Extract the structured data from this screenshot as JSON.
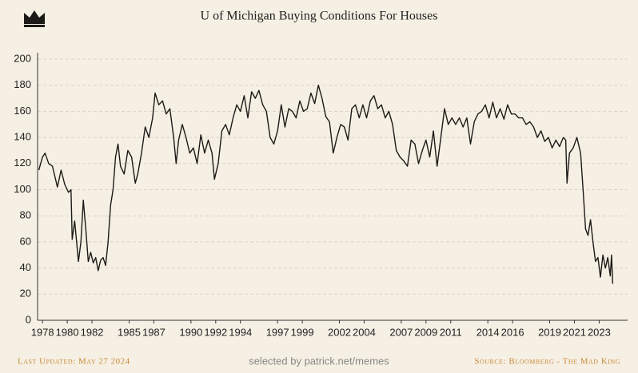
{
  "chart_data": {
    "type": "line",
    "title": "U of Michigan Buying Conditions For Houses",
    "xlim": [
      1977.6,
      2025.3
    ],
    "ylim": [
      0,
      200
    ],
    "yticks": [
      0,
      20,
      40,
      60,
      80,
      100,
      120,
      140,
      160,
      180,
      200
    ],
    "xticks": [
      1978,
      1980,
      1982,
      1985,
      1987,
      1990,
      1992,
      1994,
      1997,
      1999,
      2002,
      2004,
      2007,
      2009,
      2011,
      2014,
      2016,
      2019,
      2021,
      2023
    ],
    "grid": true,
    "color": "#1c1a17",
    "x": [
      1977.7,
      1978.0,
      1978.2,
      1978.5,
      1978.8,
      1979.0,
      1979.2,
      1979.5,
      1979.8,
      1980.1,
      1980.3,
      1980.4,
      1980.6,
      1980.9,
      1981.1,
      1981.3,
      1981.5,
      1981.7,
      1981.9,
      1982.1,
      1982.3,
      1982.5,
      1982.7,
      1982.9,
      1983.1,
      1983.3,
      1983.5,
      1983.7,
      1983.9,
      1984.1,
      1984.3,
      1984.6,
      1984.9,
      1985.2,
      1985.5,
      1985.7,
      1986.0,
      1986.3,
      1986.6,
      1986.9,
      1987.1,
      1987.4,
      1987.7,
      1988.0,
      1988.3,
      1988.6,
      1988.8,
      1989.0,
      1989.3,
      1989.6,
      1989.9,
      1990.2,
      1990.5,
      1990.8,
      1991.1,
      1991.4,
      1991.7,
      1991.9,
      1992.2,
      1992.5,
      1992.8,
      1993.1,
      1993.4,
      1993.7,
      1994.0,
      1994.3,
      1994.6,
      1994.9,
      1995.2,
      1995.5,
      1995.8,
      1996.1,
      1996.4,
      1996.7,
      1997.0,
      1997.3,
      1997.6,
      1997.9,
      1998.2,
      1998.5,
      1998.8,
      1999.1,
      1999.4,
      1999.7,
      2000.0,
      2000.3,
      2000.6,
      2000.9,
      2001.2,
      2001.5,
      2001.8,
      2002.1,
      2002.4,
      2002.7,
      2003.0,
      2003.3,
      2003.6,
      2003.9,
      2004.2,
      2004.5,
      2004.8,
      2005.1,
      2005.4,
      2005.7,
      2006.0,
      2006.3,
      2006.6,
      2006.9,
      2007.2,
      2007.5,
      2007.8,
      2008.1,
      2008.4,
      2008.7,
      2009.0,
      2009.3,
      2009.6,
      2009.9,
      2010.2,
      2010.5,
      2010.8,
      2011.1,
      2011.4,
      2011.7,
      2012.0,
      2012.3,
      2012.6,
      2012.9,
      2013.2,
      2013.5,
      2013.8,
      2014.1,
      2014.4,
      2014.7,
      2015.0,
      2015.3,
      2015.6,
      2015.9,
      2016.2,
      2016.5,
      2016.8,
      2017.1,
      2017.4,
      2017.7,
      2018.0,
      2018.3,
      2018.6,
      2018.9,
      2019.2,
      2019.5,
      2019.8,
      2020.1,
      2020.3,
      2020.4,
      2020.6,
      2020.9,
      2021.2,
      2021.5,
      2021.7,
      2021.9,
      2022.1,
      2022.3,
      2022.5,
      2022.7,
      2022.9,
      2023.1,
      2023.3,
      2023.5,
      2023.7,
      2023.9,
      2024.0,
      2024.1
    ],
    "values": [
      115,
      125,
      128,
      120,
      118,
      110,
      102,
      115,
      104,
      98,
      100,
      62,
      76,
      45,
      60,
      92,
      70,
      45,
      52,
      44,
      48,
      38,
      46,
      48,
      42,
      60,
      88,
      100,
      125,
      135,
      118,
      112,
      130,
      125,
      105,
      112,
      128,
      148,
      140,
      155,
      174,
      165,
      168,
      158,
      162,
      140,
      120,
      138,
      150,
      140,
      128,
      132,
      120,
      142,
      128,
      138,
      128,
      108,
      120,
      145,
      150,
      142,
      155,
      165,
      160,
      172,
      155,
      175,
      170,
      176,
      165,
      160,
      140,
      135,
      145,
      165,
      148,
      162,
      160,
      155,
      168,
      160,
      162,
      174,
      166,
      180,
      170,
      156,
      152,
      128,
      140,
      150,
      148,
      138,
      162,
      165,
      155,
      165,
      155,
      168,
      172,
      162,
      165,
      155,
      160,
      150,
      130,
      125,
      122,
      118,
      138,
      135,
      120,
      130,
      138,
      125,
      145,
      118,
      140,
      162,
      150,
      155,
      150,
      155,
      148,
      155,
      135,
      152,
      158,
      160,
      165,
      155,
      167,
      155,
      162,
      154,
      165,
      158,
      158,
      155,
      155,
      150,
      152,
      148,
      140,
      145,
      137,
      140,
      132,
      138,
      133,
      140,
      138,
      105,
      128,
      132,
      140,
      128,
      100,
      70,
      65,
      77,
      60,
      45,
      48,
      33,
      50,
      40,
      48,
      34,
      50,
      28
    ]
  },
  "footer": {
    "updated": "Last Updated: May 27 2024",
    "credit": "selected by patrick.net/memes",
    "source": "Source: Bloomberg - The Mad King"
  }
}
